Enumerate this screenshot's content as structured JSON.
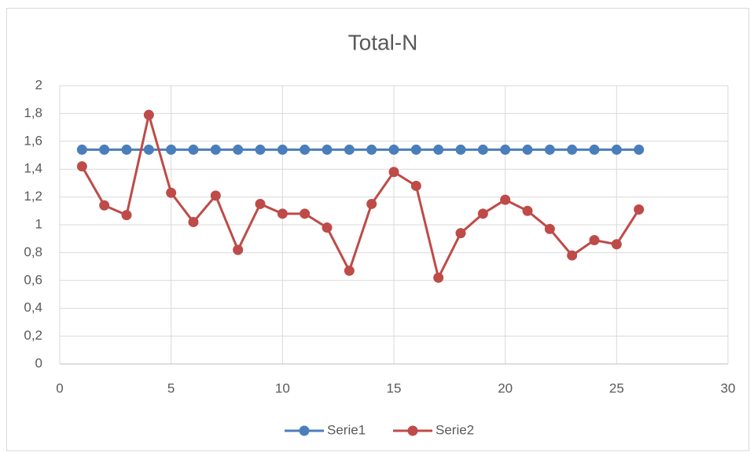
{
  "chart_data": {
    "type": "line",
    "title": "Total-N",
    "x": [
      1,
      2,
      3,
      4,
      5,
      6,
      7,
      8,
      9,
      10,
      11,
      12,
      13,
      14,
      15,
      16,
      17,
      18,
      19,
      20,
      21,
      22,
      23,
      24,
      25,
      26
    ],
    "series": [
      {
        "name": "Serie1",
        "color": "#4a7ebb",
        "values": [
          1.54,
          1.54,
          1.54,
          1.54,
          1.54,
          1.54,
          1.54,
          1.54,
          1.54,
          1.54,
          1.54,
          1.54,
          1.54,
          1.54,
          1.54,
          1.54,
          1.54,
          1.54,
          1.54,
          1.54,
          1.54,
          1.54,
          1.54,
          1.54,
          1.54,
          1.54
        ]
      },
      {
        "name": "Serie2",
        "color": "#be4b48",
        "values": [
          1.42,
          1.14,
          1.07,
          1.79,
          1.23,
          1.02,
          1.21,
          0.82,
          1.15,
          1.08,
          1.08,
          0.98,
          0.67,
          1.15,
          1.38,
          1.28,
          0.62,
          0.94,
          1.08,
          1.18,
          1.1,
          0.97,
          0.78,
          0.89,
          0.86,
          1.11
        ]
      }
    ],
    "xlim": [
      0,
      30
    ],
    "xticks": [
      0,
      5,
      10,
      15,
      20,
      25,
      30
    ],
    "ylim": [
      0,
      2
    ],
    "yticks": [
      0,
      {
        "value": 0.2,
        "label": "0,2"
      },
      {
        "value": 0.4,
        "label": "0,4"
      },
      {
        "value": 0.6,
        "label": "0,6"
      },
      {
        "value": 0.8,
        "label": "0,8"
      },
      1,
      {
        "value": 1.2,
        "label": "1,2"
      },
      {
        "value": 1.4,
        "label": "1,4"
      },
      {
        "value": 1.6,
        "label": "1,6"
      },
      {
        "value": 1.8,
        "label": "1,8"
      },
      2
    ],
    "grid": true,
    "legend": "bottom"
  }
}
